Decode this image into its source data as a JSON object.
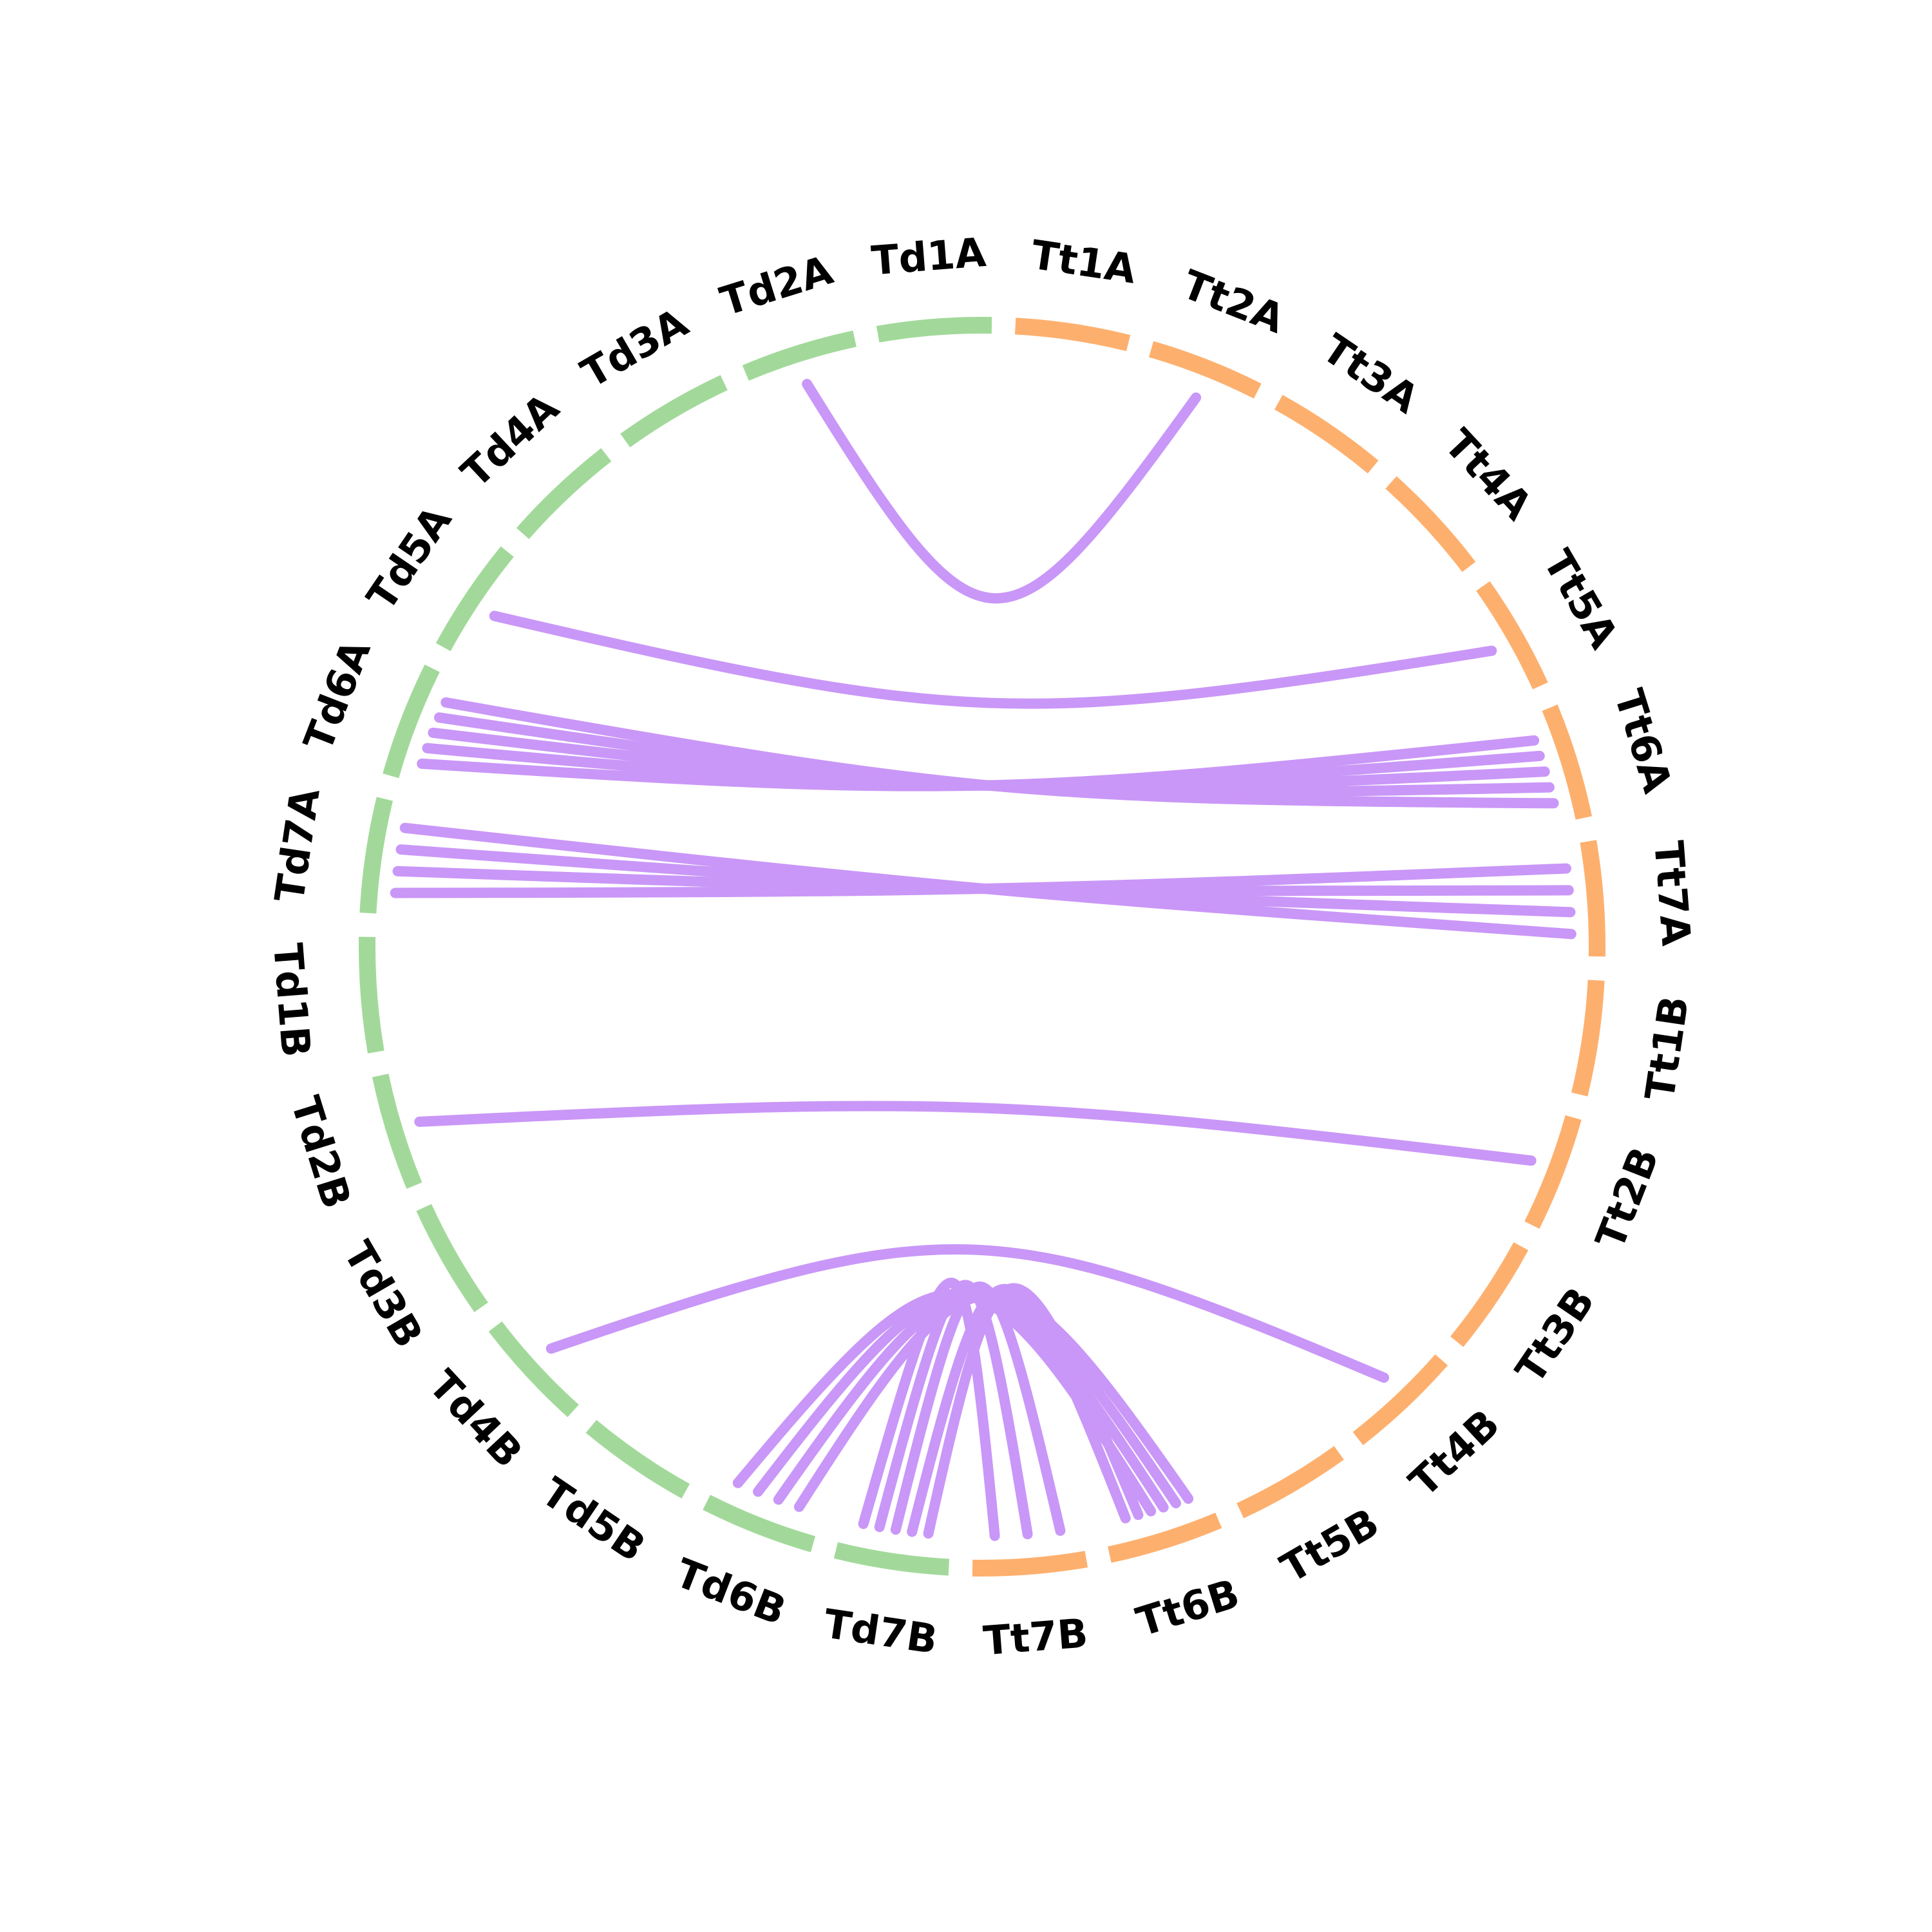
{
  "colors": {
    "td_segment": "#a2d99a",
    "tt_segment": "#fdb06e",
    "link": "#c997f7"
  },
  "segments": [
    {
      "name": "Tt1A",
      "group": "tt"
    },
    {
      "name": "Tt2A",
      "group": "tt"
    },
    {
      "name": "Tt3A",
      "group": "tt"
    },
    {
      "name": "Tt4A",
      "group": "tt"
    },
    {
      "name": "Tt5A",
      "group": "tt"
    },
    {
      "name": "Tt6A",
      "group": "tt"
    },
    {
      "name": "Tt7A",
      "group": "tt"
    },
    {
      "name": "Tt1B",
      "group": "tt"
    },
    {
      "name": "Tt2B",
      "group": "tt"
    },
    {
      "name": "Tt3B",
      "group": "tt"
    },
    {
      "name": "Tt4B",
      "group": "tt"
    },
    {
      "name": "Tt5B",
      "group": "tt"
    },
    {
      "name": "Tt6B",
      "group": "tt"
    },
    {
      "name": "Tt7B",
      "group": "tt"
    },
    {
      "name": "Td7B",
      "group": "td"
    },
    {
      "name": "Td6B",
      "group": "td"
    },
    {
      "name": "Td5B",
      "group": "td"
    },
    {
      "name": "Td4B",
      "group": "td"
    },
    {
      "name": "Td3B",
      "group": "td"
    },
    {
      "name": "Td2B",
      "group": "td"
    },
    {
      "name": "Td1B",
      "group": "td"
    },
    {
      "name": "Td7A",
      "group": "td"
    },
    {
      "name": "Td6A",
      "group": "td"
    },
    {
      "name": "Td5A",
      "group": "td"
    },
    {
      "name": "Td4A",
      "group": "td"
    },
    {
      "name": "Td3A",
      "group": "td"
    },
    {
      "name": "Td2A",
      "group": "td"
    },
    {
      "name": "Td1A",
      "group": "td"
    }
  ],
  "links": [
    {
      "from": "Td2A",
      "to": "Tt2A"
    },
    {
      "from": "Td5A",
      "to": "Tt5A"
    },
    {
      "from": "Td6A",
      "to": "Tt6A"
    },
    {
      "from": "Td6A",
      "to": "Tt6A"
    },
    {
      "from": "Td6A",
      "to": "Tt6A"
    },
    {
      "from": "Td6A",
      "to": "Tt6A"
    },
    {
      "from": "Td6A",
      "to": "Tt6A"
    },
    {
      "from": "Td7A",
      "to": "Tt7A"
    },
    {
      "from": "Td7A",
      "to": "Tt7A"
    },
    {
      "from": "Td7A",
      "to": "Tt7A"
    },
    {
      "from": "Td7A",
      "to": "Tt7A"
    },
    {
      "from": "Td2B",
      "to": "Tt2B"
    },
    {
      "from": "Td4B",
      "to": "Tt4B"
    },
    {
      "from": "Td6B",
      "to": "Tt6B"
    },
    {
      "from": "Td6B",
      "to": "Tt6B"
    },
    {
      "from": "Td6B",
      "to": "Tt6B"
    },
    {
      "from": "Td6B",
      "to": "Tt6B"
    },
    {
      "from": "Td7B",
      "to": "Tt6B"
    },
    {
      "from": "Td7B",
      "to": "Tt6B"
    },
    {
      "from": "Td7B",
      "to": "Tt7B"
    },
    {
      "from": "Td7B",
      "to": "Tt7B"
    },
    {
      "from": "Td7B",
      "to": "Tt7B"
    }
  ]
}
